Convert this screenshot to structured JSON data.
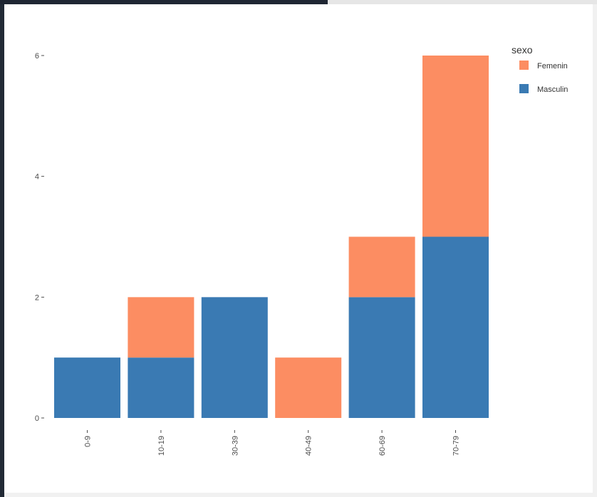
{
  "chart_data": {
    "type": "bar",
    "stacked": true,
    "categories": [
      "0-9",
      "10-19",
      "30-39",
      "40-49",
      "60-69",
      "70-79"
    ],
    "series": [
      {
        "name": "Masculin",
        "color": "#3a7ab3",
        "values": [
          1,
          1,
          2,
          0,
          2,
          3
        ]
      },
      {
        "name": "Femenin",
        "color": "#fc8d62",
        "values": [
          0,
          1,
          0,
          1,
          1,
          3
        ]
      }
    ],
    "yticks": [
      0,
      2,
      4,
      6
    ],
    "ylim": [
      0,
      6
    ],
    "legend": {
      "title": "sexo",
      "placement": "top-right",
      "items": [
        {
          "label": "Femenin",
          "color": "#fc8d62"
        },
        {
          "label": "Masculin",
          "color": "#3a7ab3"
        }
      ]
    },
    "grid": false
  }
}
